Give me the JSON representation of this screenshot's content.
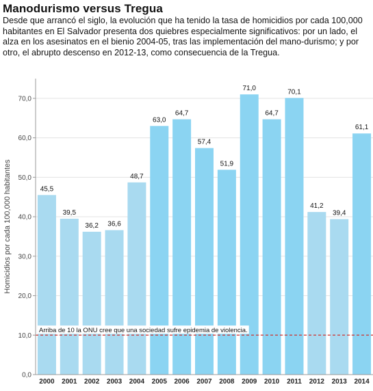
{
  "title": "Manodurismo versus Tregua",
  "subtitle": "Desde que arrancó el siglo, la evolución que ha tenido la tasa de homicidios por cada 100,000 habitantes en El Salvador presenta dos quiebres especialmente significativos: por un lado, el alza en los asesinatos en el bienio 2004-05, tras las implementación del mano-durismo; y por otro, el abrupto descenso en 2012-13, como consecuencia de la Tregua.",
  "chart_data": {
    "type": "bar",
    "categories": [
      "2000",
      "2001",
      "2002",
      "2003",
      "2004",
      "2005",
      "2006",
      "2007",
      "2008",
      "2009",
      "2010",
      "2011",
      "2012",
      "2013",
      "2014"
    ],
    "values": [
      45.5,
      39.5,
      36.2,
      36.6,
      48.7,
      63.0,
      64.7,
      57.4,
      51.9,
      71.0,
      64.7,
      70.1,
      41.2,
      39.4,
      61.1
    ],
    "data_labels": [
      "45,5",
      "39,5",
      "36,2",
      "36,6",
      "48,7",
      "63,0",
      "64,7",
      "57,4",
      "51,9",
      "71,0",
      "64,7",
      "70,1",
      "41,2",
      "39,4",
      "61,1"
    ],
    "ylabel": "Homicidios por cada 100,000 habitantes",
    "xlabel": "",
    "ylim": [
      0,
      75
    ],
    "yticks": [
      0,
      10,
      20,
      30,
      40,
      50,
      60,
      70
    ],
    "ytick_labels": [
      "0,0",
      "10,0",
      "20,0",
      "30,0",
      "40,0",
      "50,0",
      "60,0",
      "70,0"
    ],
    "grid": true,
    "reference_line": {
      "value": 10,
      "label": "Arriba de 10 la ONU cree que una sociedad sufre epidemia de violencia.",
      "style": "dashed",
      "color": "#d0312d"
    },
    "colors": {
      "bar_low": "#a9daf0",
      "bar_high": "#8bd4f2",
      "grid": "#e3e3e3",
      "axis": "#999999"
    }
  }
}
